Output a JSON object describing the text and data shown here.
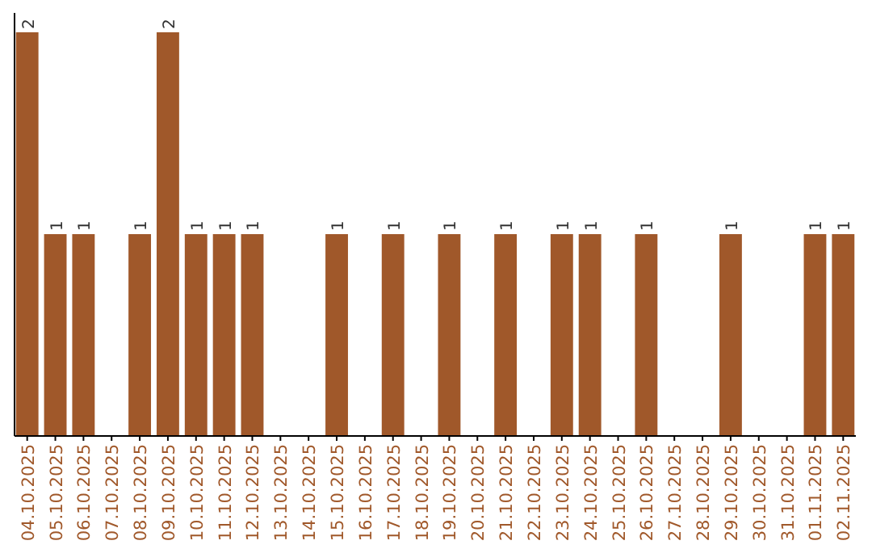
{
  "chart_data": {
    "type": "bar",
    "categories": [
      "04.10.2025",
      "05.10.2025",
      "06.10.2025",
      "07.10.2025",
      "08.10.2025",
      "09.10.2025",
      "10.10.2025",
      "11.10.2025",
      "12.10.2025",
      "13.10.2025",
      "14.10.2025",
      "15.10.2025",
      "16.10.2025",
      "17.10.2025",
      "18.10.2025",
      "19.10.2025",
      "20.10.2025",
      "21.10.2025",
      "22.10.2025",
      "23.10.2025",
      "24.10.2025",
      "25.10.2025",
      "26.10.2025",
      "27.10.2025",
      "28.10.2025",
      "29.10.2025",
      "30.10.2025",
      "31.10.2025",
      "01.11.2025",
      "02.11.2025"
    ],
    "values": [
      2,
      1,
      1,
      0,
      1,
      2,
      1,
      1,
      1,
      0,
      0,
      1,
      0,
      1,
      0,
      1,
      0,
      1,
      0,
      1,
      1,
      0,
      1,
      0,
      0,
      1,
      0,
      0,
      1,
      1
    ],
    "value_labels": [
      "2",
      "1",
      "1",
      null,
      "1",
      "2",
      "1",
      "1",
      "1",
      null,
      null,
      "1",
      null,
      "1",
      null,
      "1",
      null,
      "1",
      null,
      "1",
      "1",
      null,
      "1",
      null,
      null,
      "1",
      null,
      null,
      "1",
      "1"
    ],
    "color": "#a0582a",
    "relative": false,
    "grid": false
  }
}
